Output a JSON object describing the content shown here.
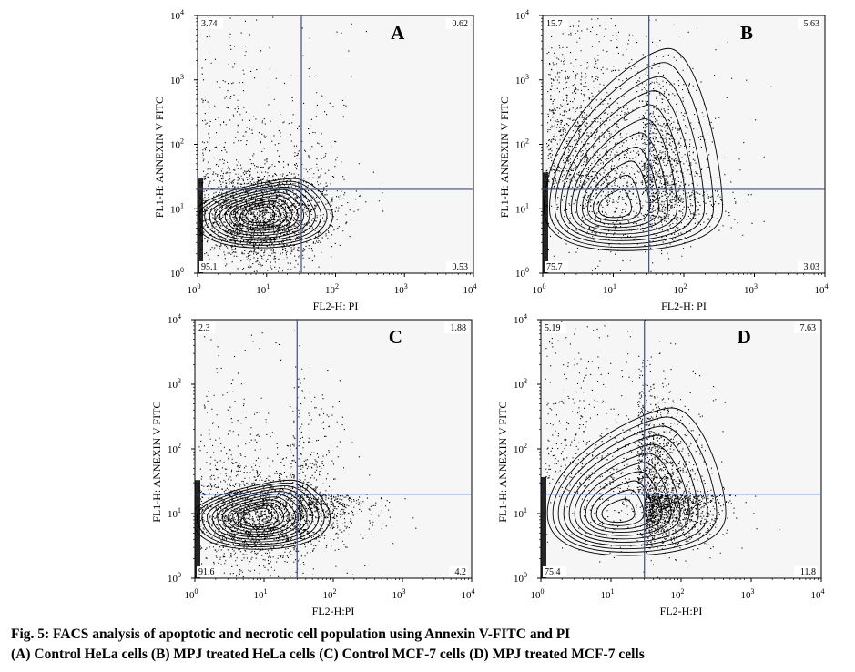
{
  "caption": {
    "line1": "Fig. 5: FACS analysis of apoptotic and necrotic cell population using Annexin V-FITC and PI",
    "line2": "(A) Control HeLa cells (B) MPJ treated HeLa cells (C) Control MCF-7 cells (D) MPJ treated MCF-7 cells"
  },
  "chart_data": [
    {
      "type": "scatter",
      "panel_label": "A",
      "xlabel": "FL2-H: PI",
      "ylabel": "FL1-H: ANNEXIN V FITC",
      "xscale": "log",
      "yscale": "log",
      "xlim": [
        1,
        10000
      ],
      "ylim": [
        1,
        10000
      ],
      "x_ticks": [
        "10",
        "10",
        "10",
        "10",
        "10"
      ],
      "x_tick_exponents": [
        "0",
        "1",
        "2",
        "3",
        "4"
      ],
      "y_ticks": [
        "10",
        "10",
        "10",
        "10",
        "10"
      ],
      "y_tick_exponents": [
        "0",
        "1",
        "2",
        "3",
        "4"
      ],
      "gate": {
        "x": 32,
        "y": 20
      },
      "quadrants": {
        "upper_left": "3.74",
        "upper_right": "0.62",
        "lower_left": "95.1",
        "lower_right": "0.53"
      },
      "population_peak": {
        "x": 8,
        "y": 8
      }
    },
    {
      "type": "scatter",
      "panel_label": "B",
      "xlabel": "FL2-H: PI",
      "ylabel": "FL1-H: ANNEXIN V FITC",
      "xscale": "log",
      "yscale": "log",
      "xlim": [
        1,
        10000
      ],
      "ylim": [
        1,
        10000
      ],
      "x_ticks": [
        "10",
        "10",
        "10",
        "10",
        "10"
      ],
      "x_tick_exponents": [
        "0",
        "1",
        "2",
        "3",
        "4"
      ],
      "y_ticks": [
        "10",
        "10",
        "10",
        "10",
        "10"
      ],
      "y_tick_exponents": [
        "0",
        "1",
        "2",
        "3",
        "4"
      ],
      "gate": {
        "x": 32,
        "y": 20
      },
      "quadrants": {
        "upper_left": "15.7",
        "upper_right": "5.63",
        "lower_left": "75.7",
        "lower_right": "3.03"
      },
      "population_peak": {
        "x": 10,
        "y": 10
      }
    },
    {
      "type": "scatter",
      "panel_label": "C",
      "xlabel": "FL2-H:PI",
      "ylabel": "FL1-H: ANNEXIN V FITC",
      "xscale": "log",
      "yscale": "log",
      "xlim": [
        1,
        10000
      ],
      "ylim": [
        1,
        10000
      ],
      "x_ticks": [
        "10",
        "10",
        "10",
        "10",
        "10"
      ],
      "x_tick_exponents": [
        "0",
        "1",
        "2",
        "3",
        "4"
      ],
      "y_ticks": [
        "10",
        "10",
        "10",
        "10",
        "10"
      ],
      "y_tick_exponents": [
        "0",
        "1",
        "2",
        "3",
        "4"
      ],
      "gate": {
        "x": 30,
        "y": 20
      },
      "quadrants": {
        "upper_left": "2.3",
        "upper_right": "1.88",
        "lower_left": "91.6",
        "lower_right": "4.2"
      },
      "population_peak": {
        "x": 8,
        "y": 9
      }
    },
    {
      "type": "scatter",
      "panel_label": "D",
      "xlabel": "FL2-H:PI",
      "ylabel": "FL1-H: ANNEXIN V FITC",
      "xscale": "log",
      "yscale": "log",
      "xlim": [
        1,
        10000
      ],
      "ylim": [
        1,
        10000
      ],
      "x_ticks": [
        "10",
        "10",
        "10",
        "10",
        "10"
      ],
      "x_tick_exponents": [
        "0",
        "1",
        "2",
        "3",
        "4"
      ],
      "y_ticks": [
        "10",
        "10",
        "10",
        "10",
        "10"
      ],
      "y_tick_exponents": [
        "0",
        "1",
        "2",
        "3",
        "4"
      ],
      "gate": {
        "x": 30,
        "y": 20
      },
      "quadrants": {
        "upper_left": "5.19",
        "upper_right": "7.63",
        "lower_left": "75.4",
        "lower_right": "11.8"
      },
      "population_peak": {
        "x": 12,
        "y": 10
      }
    }
  ],
  "colors": {
    "gate_line": "#3a4f8a",
    "plot_background": "#f6f6f6",
    "ink": "#000000"
  }
}
